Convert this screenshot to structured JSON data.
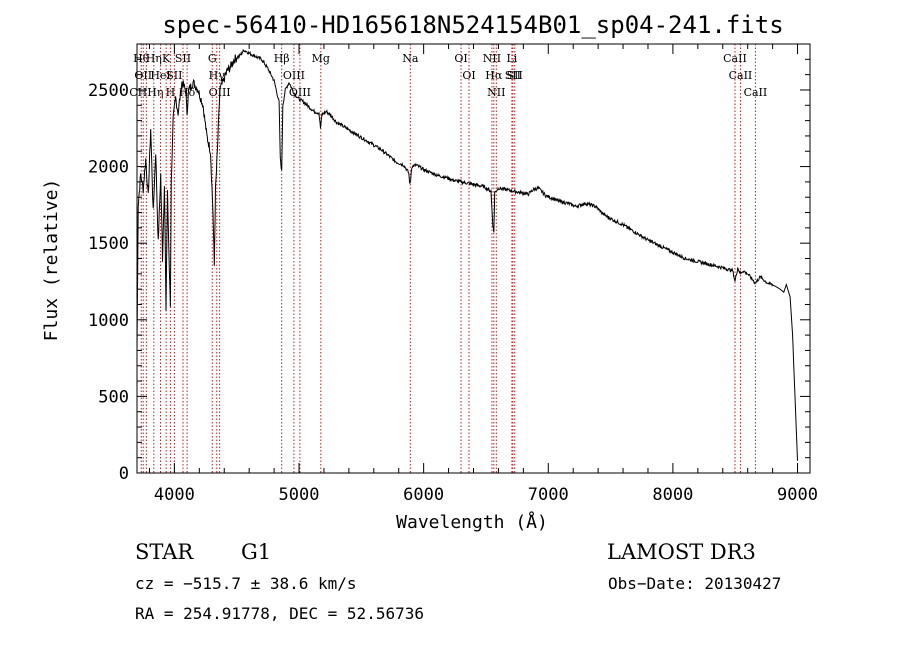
{
  "chart_data": {
    "type": "line",
    "title": "spec-56410-HD165618N524154B01_sp04-241.fits",
    "xlabel": "Wavelength (Å)",
    "ylabel": "Flux (relative)",
    "xlim": [
      3700,
      9100
    ],
    "ylim": [
      0,
      2800
    ],
    "xticks": [
      4000,
      5000,
      6000,
      7000,
      8000,
      9000
    ],
    "yticks": [
      0,
      500,
      1000,
      1500,
      2000,
      2500
    ],
    "series": [
      {
        "name": "spectrum",
        "x": [
          3700,
          3710,
          3730,
          3750,
          3770,
          3790,
          3810,
          3830,
          3850,
          3870,
          3890,
          3905,
          3920,
          3933,
          3945,
          3955,
          3968,
          3975,
          3990,
          4010,
          4030,
          4060,
          4090,
          4101,
          4115,
          4150,
          4190,
          4230,
          4260,
          4290,
          4310,
          4320,
          4330,
          4345,
          4365,
          4390,
          4420,
          4450,
          4480,
          4520,
          4560,
          4600,
          4650,
          4700,
          4750,
          4800,
          4840,
          4850,
          4861,
          4870,
          4890,
          4920,
          4960,
          5000,
          5040,
          5080,
          5120,
          5160,
          5172,
          5185,
          5220,
          5260,
          5300,
          5360,
          5420,
          5480,
          5540,
          5600,
          5660,
          5720,
          5780,
          5840,
          5880,
          5890,
          5896,
          5905,
          5940,
          6000,
          6060,
          6120,
          6180,
          6240,
          6300,
          6360,
          6420,
          6480,
          6540,
          6555,
          6563,
          6570,
          6600,
          6660,
          6720,
          6780,
          6840,
          6880,
          6920,
          6980,
          7040,
          7100,
          7160,
          7220,
          7300,
          7380,
          7440,
          7500,
          7600,
          7700,
          7800,
          7900,
          8000,
          8100,
          8200,
          8300,
          8400,
          8480,
          8498,
          8520,
          8542,
          8560,
          8600,
          8662,
          8700,
          8760,
          8820,
          8860,
          8890,
          8910,
          8940,
          8960,
          8980,
          9000
        ],
        "values": [
          800,
          1750,
          1950,
          1850,
          2050,
          1800,
          2250,
          1700,
          2100,
          1500,
          1950,
          1400,
          1900,
          1050,
          1850,
          1450,
          1100,
          1900,
          2300,
          2450,
          2350,
          2550,
          2500,
          2350,
          2500,
          2550,
          2500,
          2400,
          2200,
          2100,
          1700,
          1350,
          1850,
          2100,
          2500,
          2550,
          2620,
          2650,
          2700,
          2720,
          2760,
          2740,
          2720,
          2700,
          2640,
          2560,
          2420,
          2050,
          1970,
          2400,
          2500,
          2550,
          2480,
          2440,
          2420,
          2390,
          2360,
          2350,
          2250,
          2340,
          2360,
          2330,
          2290,
          2260,
          2230,
          2200,
          2170,
          2140,
          2110,
          2070,
          2030,
          2010,
          1960,
          1880,
          1920,
          2000,
          2010,
          1980,
          1960,
          1940,
          1930,
          1910,
          1900,
          1890,
          1880,
          1870,
          1840,
          1620,
          1570,
          1830,
          1860,
          1850,
          1840,
          1830,
          1820,
          1850,
          1860,
          1810,
          1790,
          1770,
          1760,
          1740,
          1760,
          1740,
          1690,
          1660,
          1620,
          1570,
          1520,
          1480,
          1440,
          1400,
          1380,
          1360,
          1340,
          1320,
          1250,
          1340,
          1300,
          1320,
          1300,
          1240,
          1280,
          1240,
          1220,
          1200,
          1180,
          1230,
          1150,
          900,
          500,
          80
        ]
      }
    ],
    "lines": [
      {
        "wave": 3734,
        "label": "Hθ"
      },
      {
        "wave": 3750,
        "label": "OII"
      },
      {
        "wave": 3775,
        "label": "CHHη"
      },
      {
        "wave": 3835,
        "label": "Hη"
      },
      {
        "wave": 3889,
        "label": "HeI"
      },
      {
        "wave": 3934,
        "label": "K"
      },
      {
        "wave": 3968,
        "label": "H"
      },
      {
        "wave": 4000,
        "label": "SII"
      },
      {
        "wave": 4069,
        "label": "SII"
      },
      {
        "wave": 4102,
        "label": "Hδ"
      },
      {
        "wave": 4304,
        "label": "G"
      },
      {
        "wave": 4340,
        "label": "Hγ"
      },
      {
        "wave": 4363,
        "label": "OIII"
      },
      {
        "wave": 4861,
        "label": "Hβ"
      },
      {
        "wave": 4959,
        "label": "OIII"
      },
      {
        "wave": 5007,
        "label": "OIII"
      },
      {
        "wave": 5175,
        "label": "Mg"
      },
      {
        "wave": 5893,
        "label": "Na"
      },
      {
        "wave": 6300,
        "label": "OI"
      },
      {
        "wave": 6364,
        "label": "OI"
      },
      {
        "wave": 6548,
        "label": "NII"
      },
      {
        "wave": 6563,
        "label": "Hα"
      },
      {
        "wave": 6583,
        "label": "NII"
      },
      {
        "wave": 6708,
        "label": "Li"
      },
      {
        "wave": 6716,
        "label": "SII"
      },
      {
        "wave": 6731,
        "label": "SII"
      },
      {
        "wave": 8498,
        "label": "CaII"
      },
      {
        "wave": 8542,
        "label": "CaII"
      },
      {
        "wave": 8662,
        "label": "CaII"
      }
    ]
  },
  "info": {
    "class_type": "STAR",
    "subclass": "G1",
    "survey": "LAMOST DR3",
    "cz": "cz = −515.7 ± 38.6 km/s",
    "obs_date": "Obs−Date: 20130427",
    "coords": "RA = 254.91778, DEC =  52.56736"
  },
  "colors": {
    "line_marker": "#b22222",
    "spectrum": "#000000"
  }
}
